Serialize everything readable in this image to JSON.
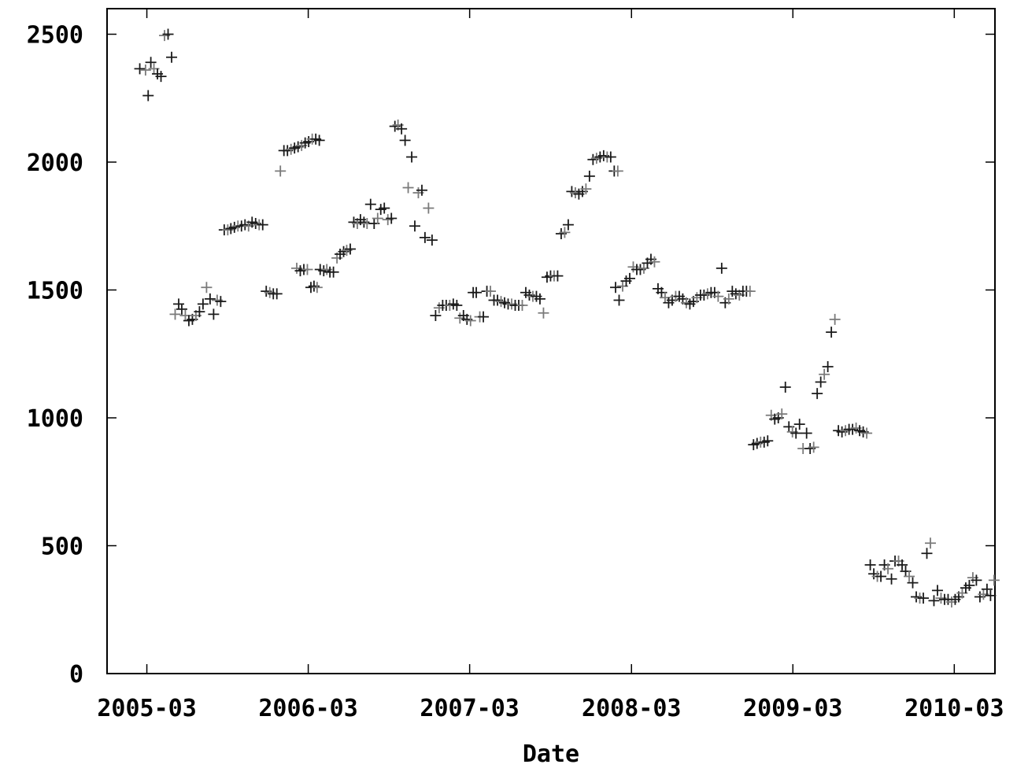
{
  "chart_data": {
    "type": "scatter",
    "title": "",
    "xlabel": "Date",
    "ylabel": "",
    "xlim": [
      "2004-12-01",
      "2010-06-01"
    ],
    "ylim": [
      0,
      2600
    ],
    "grid": false,
    "marker": "plus",
    "colors": {
      "point_dark": "#1a1a1a",
      "point_light": "#7a7a7a",
      "axis": "#000000"
    },
    "x_ticks": [
      "2005-03",
      "2006-03",
      "2007-03",
      "2008-03",
      "2009-03",
      "2010-03"
    ],
    "y_ticks": [
      0,
      500,
      1000,
      1500,
      2000,
      2500
    ],
    "series": [
      {
        "points": [
          [
            "2005-02-13",
            2365
          ],
          [
            "2005-02-26",
            2360
          ],
          [
            "2005-03-04",
            2260
          ],
          [
            "2005-03-10",
            2390
          ],
          [
            "2005-03-17",
            2365
          ],
          [
            "2005-03-25",
            2345
          ],
          [
            "2005-04-02",
            2335
          ],
          [
            "2005-04-10",
            2495
          ],
          [
            "2005-04-18",
            2500
          ],
          [
            "2005-04-26",
            2410
          ],
          [
            "2005-05-04",
            1405
          ],
          [
            "2005-05-12",
            1445
          ],
          [
            "2005-05-19",
            1425
          ],
          [
            "2005-05-27",
            1400
          ],
          [
            "2005-06-04",
            1380
          ],
          [
            "2005-06-12",
            1385
          ],
          [
            "2005-06-20",
            1400
          ],
          [
            "2005-06-28",
            1415
          ],
          [
            "2005-07-06",
            1445
          ],
          [
            "2005-07-14",
            1510
          ],
          [
            "2005-07-22",
            1465
          ],
          [
            "2005-07-30",
            1405
          ],
          [
            "2005-08-07",
            1460
          ],
          [
            "2005-08-15",
            1455
          ],
          [
            "2005-08-23",
            1735
          ],
          [
            "2005-08-31",
            1735
          ],
          [
            "2005-09-07",
            1740
          ],
          [
            "2005-09-15",
            1745
          ],
          [
            "2005-09-23",
            1750
          ],
          [
            "2005-10-01",
            1750
          ],
          [
            "2005-10-09",
            1755
          ],
          [
            "2005-10-17",
            1750
          ],
          [
            "2005-10-25",
            1765
          ],
          [
            "2005-11-02",
            1760
          ],
          [
            "2005-11-10",
            1755
          ],
          [
            "2005-11-18",
            1755
          ],
          [
            "2005-11-26",
            1495
          ],
          [
            "2005-12-04",
            1490
          ],
          [
            "2005-12-12",
            1485
          ],
          [
            "2005-12-20",
            1485
          ],
          [
            "2005-12-28",
            1965
          ],
          [
            "2006-01-05",
            2045
          ],
          [
            "2006-01-13",
            2045
          ],
          [
            "2006-01-21",
            2050
          ],
          [
            "2006-01-29",
            2055
          ],
          [
            "2006-02-06",
            2060
          ],
          [
            "2006-02-14",
            2065
          ],
          [
            "2006-02-22",
            2075
          ],
          [
            "2006-03-02",
            2080
          ],
          [
            "2006-03-10",
            2090
          ],
          [
            "2006-03-18",
            2090
          ],
          [
            "2006-03-26",
            2085
          ],
          [
            "2006-02-03",
            1585
          ],
          [
            "2006-02-11",
            1575
          ],
          [
            "2006-02-19",
            1580
          ],
          [
            "2006-02-27",
            1580
          ],
          [
            "2006-03-07",
            1510
          ],
          [
            "2006-03-14",
            1515
          ],
          [
            "2006-03-21",
            1510
          ],
          [
            "2006-03-28",
            1580
          ],
          [
            "2006-04-05",
            1575
          ],
          [
            "2006-04-12",
            1580
          ],
          [
            "2006-04-19",
            1570
          ],
          [
            "2006-04-27",
            1570
          ],
          [
            "2006-05-05",
            1625
          ],
          [
            "2006-05-12",
            1640
          ],
          [
            "2006-05-20",
            1650
          ],
          [
            "2006-05-27",
            1655
          ],
          [
            "2006-06-04",
            1660
          ],
          [
            "2006-06-12",
            1765
          ],
          [
            "2006-06-20",
            1760
          ],
          [
            "2006-06-27",
            1775
          ],
          [
            "2006-07-05",
            1765
          ],
          [
            "2006-07-12",
            1760
          ],
          [
            "2006-07-20",
            1835
          ],
          [
            "2006-07-28",
            1760
          ],
          [
            "2006-08-05",
            1780
          ],
          [
            "2006-08-12",
            1815
          ],
          [
            "2006-08-20",
            1820
          ],
          [
            "2006-08-28",
            1775
          ],
          [
            "2006-09-05",
            1780
          ],
          [
            "2006-09-13",
            2140
          ],
          [
            "2006-09-20",
            2145
          ],
          [
            "2006-09-28",
            2130
          ],
          [
            "2006-10-06",
            2085
          ],
          [
            "2006-10-13",
            1900
          ],
          [
            "2006-10-21",
            2020
          ],
          [
            "2006-10-28",
            1750
          ],
          [
            "2006-11-05",
            1880
          ],
          [
            "2006-11-13",
            1890
          ],
          [
            "2006-11-20",
            1705
          ],
          [
            "2006-11-28",
            1820
          ],
          [
            "2006-12-06",
            1695
          ],
          [
            "2006-12-14",
            1400
          ],
          [
            "2006-12-22",
            1430
          ],
          [
            "2006-12-30",
            1440
          ],
          [
            "2007-01-07",
            1440
          ],
          [
            "2007-01-15",
            1440
          ],
          [
            "2007-01-23",
            1445
          ],
          [
            "2007-01-31",
            1440
          ],
          [
            "2007-02-07",
            1390
          ],
          [
            "2007-02-15",
            1400
          ],
          [
            "2007-02-23",
            1385
          ],
          [
            "2007-03-03",
            1380
          ],
          [
            "2007-03-09",
            1490
          ],
          [
            "2007-03-16",
            1490
          ],
          [
            "2007-03-24",
            1395
          ],
          [
            "2007-04-01",
            1395
          ],
          [
            "2007-04-09",
            1495
          ],
          [
            "2007-04-17",
            1495
          ],
          [
            "2007-04-25",
            1460
          ],
          [
            "2007-05-03",
            1460
          ],
          [
            "2007-05-11",
            1455
          ],
          [
            "2007-05-19",
            1450
          ],
          [
            "2007-05-27",
            1445
          ],
          [
            "2007-06-04",
            1445
          ],
          [
            "2007-06-12",
            1440
          ],
          [
            "2007-06-20",
            1440
          ],
          [
            "2007-06-28",
            1440
          ],
          [
            "2007-07-06",
            1490
          ],
          [
            "2007-07-14",
            1480
          ],
          [
            "2007-07-22",
            1475
          ],
          [
            "2007-07-30",
            1475
          ],
          [
            "2007-08-07",
            1465
          ],
          [
            "2007-08-15",
            1410
          ],
          [
            "2007-08-23",
            1550
          ],
          [
            "2007-08-31",
            1555
          ],
          [
            "2007-09-08",
            1555
          ],
          [
            "2007-09-16",
            1555
          ],
          [
            "2007-09-24",
            1720
          ],
          [
            "2007-10-02",
            1725
          ],
          [
            "2007-10-10",
            1755
          ],
          [
            "2007-10-18",
            1885
          ],
          [
            "2007-10-26",
            1880
          ],
          [
            "2007-11-03",
            1875
          ],
          [
            "2007-11-11",
            1885
          ],
          [
            "2007-11-19",
            1895
          ],
          [
            "2007-11-27",
            1945
          ],
          [
            "2007-12-05",
            2010
          ],
          [
            "2007-12-13",
            2015
          ],
          [
            "2007-12-21",
            2020
          ],
          [
            "2007-12-29",
            2025
          ],
          [
            "2008-01-06",
            2020
          ],
          [
            "2008-01-14",
            2020
          ],
          [
            "2008-01-22",
            1965
          ],
          [
            "2008-01-30",
            1965
          ],
          [
            "2008-01-25",
            1510
          ],
          [
            "2008-02-02",
            1460
          ],
          [
            "2008-02-10",
            1515
          ],
          [
            "2008-02-18",
            1535
          ],
          [
            "2008-02-26",
            1545
          ],
          [
            "2008-03-05",
            1590
          ],
          [
            "2008-03-13",
            1580
          ],
          [
            "2008-03-21",
            1580
          ],
          [
            "2008-03-29",
            1585
          ],
          [
            "2008-04-06",
            1605
          ],
          [
            "2008-04-14",
            1620
          ],
          [
            "2008-04-22",
            1610
          ],
          [
            "2008-04-30",
            1505
          ],
          [
            "2008-05-08",
            1490
          ],
          [
            "2008-05-16",
            1470
          ],
          [
            "2008-05-24",
            1450
          ],
          [
            "2008-06-01",
            1460
          ],
          [
            "2008-06-09",
            1475
          ],
          [
            "2008-06-17",
            1475
          ],
          [
            "2008-06-25",
            1465
          ],
          [
            "2008-07-03",
            1450
          ],
          [
            "2008-07-11",
            1445
          ],
          [
            "2008-07-19",
            1455
          ],
          [
            "2008-07-27",
            1470
          ],
          [
            "2008-08-04",
            1480
          ],
          [
            "2008-08-12",
            1480
          ],
          [
            "2008-08-20",
            1485
          ],
          [
            "2008-08-28",
            1490
          ],
          [
            "2008-09-05",
            1490
          ],
          [
            "2008-09-13",
            1475
          ],
          [
            "2008-09-21",
            1585
          ],
          [
            "2008-09-29",
            1450
          ],
          [
            "2008-10-07",
            1465
          ],
          [
            "2008-10-15",
            1495
          ],
          [
            "2008-10-23",
            1485
          ],
          [
            "2008-10-31",
            1480
          ],
          [
            "2008-11-08",
            1495
          ],
          [
            "2008-11-16",
            1495
          ],
          [
            "2008-11-24",
            1495
          ],
          [
            "2008-12-02",
            895
          ],
          [
            "2008-12-10",
            900
          ],
          [
            "2008-12-18",
            905
          ],
          [
            "2008-12-26",
            905
          ],
          [
            "2009-01-03",
            910
          ],
          [
            "2009-01-11",
            1010
          ],
          [
            "2009-01-19",
            995
          ],
          [
            "2009-01-27",
            1000
          ],
          [
            "2009-02-04",
            1015
          ],
          [
            "2009-02-12",
            1120
          ],
          [
            "2009-02-20",
            965
          ],
          [
            "2009-02-28",
            945
          ],
          [
            "2009-03-08",
            940
          ],
          [
            "2009-03-16",
            975
          ],
          [
            "2009-03-24",
            880
          ],
          [
            "2009-04-01",
            940
          ],
          [
            "2009-04-09",
            880
          ],
          [
            "2009-04-17",
            885
          ],
          [
            "2009-04-25",
            1095
          ],
          [
            "2009-05-03",
            1140
          ],
          [
            "2009-05-11",
            1170
          ],
          [
            "2009-05-19",
            1200
          ],
          [
            "2009-05-27",
            1335
          ],
          [
            "2009-06-04",
            1385
          ],
          [
            "2009-06-12",
            950
          ],
          [
            "2009-06-20",
            945
          ],
          [
            "2009-06-28",
            950
          ],
          [
            "2009-07-06",
            955
          ],
          [
            "2009-07-14",
            955
          ],
          [
            "2009-07-22",
            960
          ],
          [
            "2009-07-30",
            950
          ],
          [
            "2009-08-07",
            945
          ],
          [
            "2009-08-15",
            940
          ],
          [
            "2009-08-23",
            425
          ],
          [
            "2009-08-31",
            390
          ],
          [
            "2009-09-08",
            380
          ],
          [
            "2009-09-16",
            380
          ],
          [
            "2009-09-24",
            425
          ],
          [
            "2009-10-02",
            410
          ],
          [
            "2009-10-10",
            370
          ],
          [
            "2009-10-18",
            440
          ],
          [
            "2009-10-26",
            440
          ],
          [
            "2009-11-03",
            425
          ],
          [
            "2009-11-11",
            400
          ],
          [
            "2009-11-19",
            380
          ],
          [
            "2009-11-27",
            355
          ],
          [
            "2009-12-05",
            300
          ],
          [
            "2009-12-13",
            295
          ],
          [
            "2009-12-21",
            295
          ],
          [
            "2009-12-29",
            470
          ],
          [
            "2010-01-06",
            510
          ],
          [
            "2010-01-14",
            285
          ],
          [
            "2010-01-22",
            325
          ],
          [
            "2010-01-30",
            295
          ],
          [
            "2010-02-07",
            290
          ],
          [
            "2010-02-15",
            290
          ],
          [
            "2010-02-23",
            280
          ],
          [
            "2010-03-03",
            290
          ],
          [
            "2010-03-11",
            300
          ],
          [
            "2010-03-19",
            315
          ],
          [
            "2010-03-27",
            335
          ],
          [
            "2010-04-04",
            345
          ],
          [
            "2010-04-12",
            375
          ],
          [
            "2010-04-20",
            365
          ],
          [
            "2010-04-28",
            300
          ],
          [
            "2010-05-06",
            310
          ],
          [
            "2010-05-14",
            330
          ],
          [
            "2010-05-22",
            305
          ],
          [
            "2010-05-30",
            365
          ]
        ]
      }
    ]
  }
}
